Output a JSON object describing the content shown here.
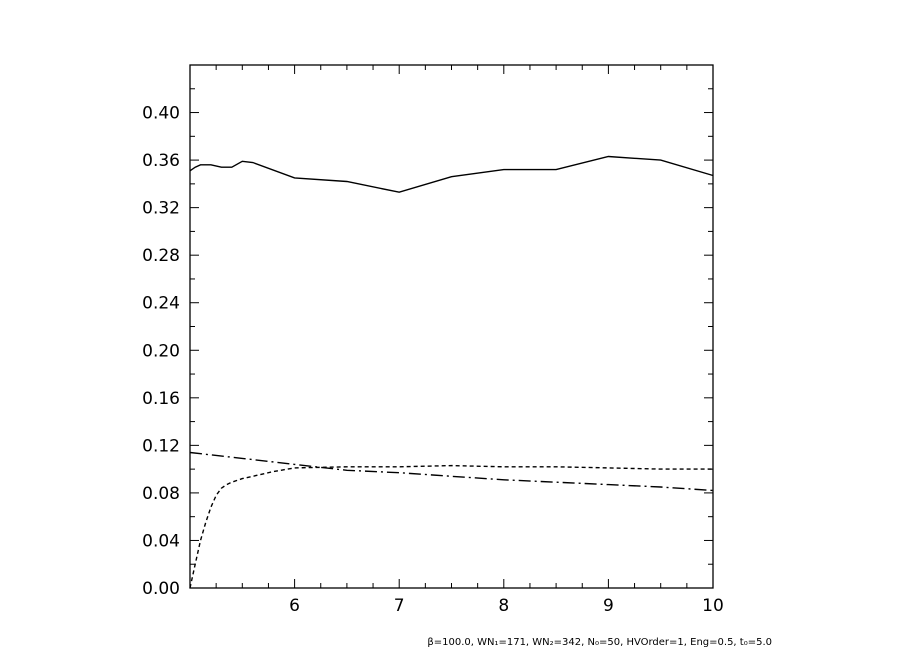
{
  "chart_data": {
    "type": "line",
    "title": "",
    "xlabel": "",
    "ylabel": "",
    "xlim": [
      5,
      10
    ],
    "ylim": [
      0.0,
      0.44
    ],
    "grid": false,
    "x_ticks": [
      "6",
      "7",
      "8",
      "9",
      "10"
    ],
    "y_ticks": [
      "0.00",
      "0.04",
      "0.08",
      "0.12",
      "0.16",
      "0.20",
      "0.24",
      "0.28",
      "0.32",
      "0.36",
      "0.40"
    ],
    "series": [
      {
        "style": "solid",
        "x": [
          5.0,
          5.05,
          5.1,
          5.2,
          5.3,
          5.4,
          5.5,
          5.6,
          6.0,
          6.5,
          7.0,
          7.5,
          8.0,
          8.5,
          9.0,
          9.5,
          10.0
        ],
        "y": [
          0.351,
          0.354,
          0.356,
          0.356,
          0.354,
          0.354,
          0.359,
          0.358,
          0.345,
          0.342,
          0.333,
          0.346,
          0.352,
          0.352,
          0.363,
          0.36,
          0.347
        ]
      },
      {
        "style": "dashed",
        "x": [
          5.0,
          5.05,
          5.1,
          5.15,
          5.2,
          5.25,
          5.3,
          5.35,
          5.4,
          5.5,
          5.6,
          5.8,
          6.0,
          6.5,
          7.0,
          7.5,
          8.0,
          8.5,
          9.0,
          9.5,
          10.0
        ],
        "y": [
          0.0,
          0.02,
          0.04,
          0.055,
          0.068,
          0.078,
          0.084,
          0.087,
          0.089,
          0.092,
          0.094,
          0.098,
          0.101,
          0.102,
          0.102,
          0.103,
          0.102,
          0.102,
          0.101,
          0.1,
          0.1
        ]
      },
      {
        "style": "dash-dot",
        "x": [
          5.0,
          5.5,
          6.0,
          6.5,
          7.0,
          7.5,
          8.0,
          8.5,
          9.0,
          9.5,
          10.0
        ],
        "y": [
          0.114,
          0.109,
          0.104,
          0.099,
          0.097,
          0.094,
          0.091,
          0.089,
          0.087,
          0.085,
          0.082
        ]
      }
    ],
    "footnote": "β=100.0, WN₁=171, WN₂=342, N₀=50, HVOrder=1, Eng=0.5, t₀=5.0"
  }
}
